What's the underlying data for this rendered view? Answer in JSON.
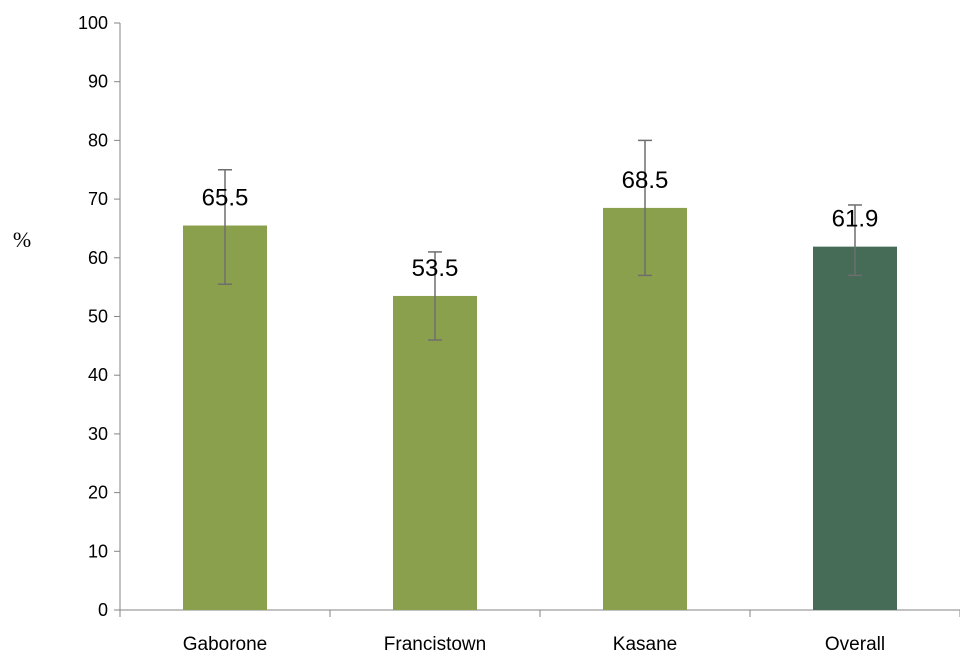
{
  "chart_data": {
    "type": "bar",
    "categories": [
      "Gaborone",
      "Francistown",
      "Kasane",
      "Overall"
    ],
    "values": [
      65.5,
      53.5,
      68.5,
      61.9
    ],
    "data_labels": [
      "65.5",
      "53.5",
      "68.5",
      "61.9"
    ],
    "error_bars": [
      {
        "low": 55.5,
        "high": 75.0
      },
      {
        "low": 46.0,
        "high": 61.0
      },
      {
        "low": 57.0,
        "high": 80.0
      },
      {
        "low": 57.0,
        "high": 69.0
      }
    ],
    "bar_colors": [
      "#8BA04C",
      "#8BA04C",
      "#8BA04C",
      "#466C57"
    ],
    "error_bar_color": "#6e6e6e",
    "ylabel": "%",
    "ylim": [
      0,
      100
    ],
    "yticks": [
      0,
      10,
      20,
      30,
      40,
      50,
      60,
      70,
      80,
      90,
      100
    ],
    "ytick_labels": [
      "0",
      "10",
      "20",
      "30",
      "40",
      "50",
      "60",
      "70",
      "80",
      "90",
      "100"
    ],
    "grid": false,
    "legend": "none"
  }
}
